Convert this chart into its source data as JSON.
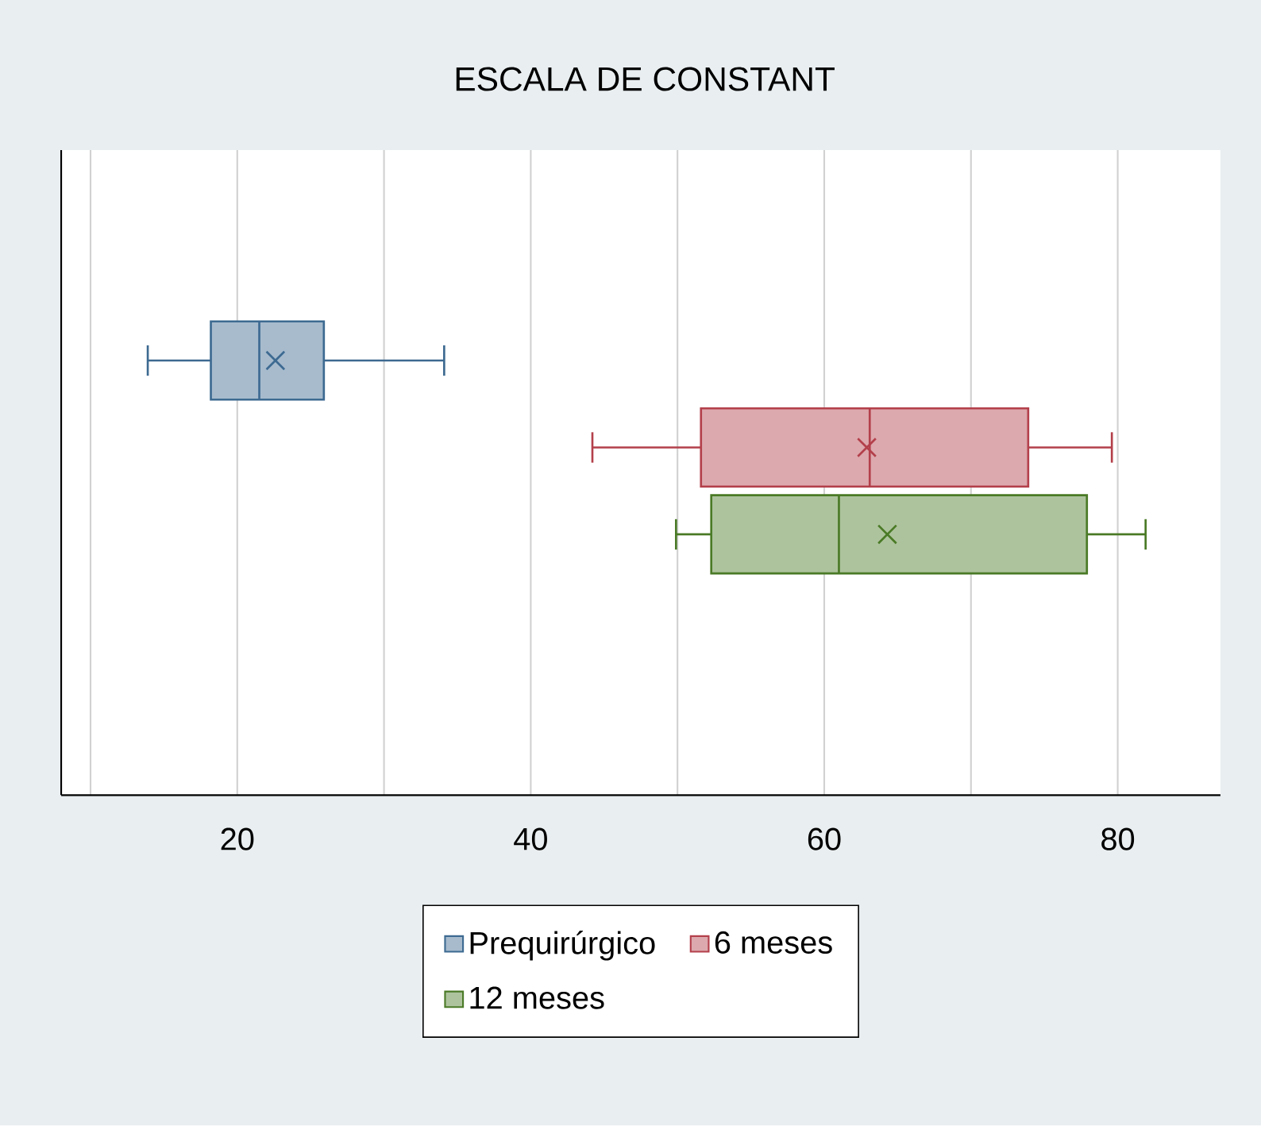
{
  "chart_data": {
    "type": "box",
    "title": "ESCALA DE CONSTANT",
    "orientation": "horizontal",
    "categories": [
      null
    ],
    "series": [
      {
        "name": "Prequirúrgico",
        "color": "#3d6a91",
        "boxes": [
          {
            "low": 13.9,
            "q1": 18.2,
            "median": 21.5,
            "q3": 25.9,
            "high": 34.1,
            "mean": 22.6
          }
        ]
      },
      {
        "name": "6 meses",
        "color": "#b3404b",
        "boxes": [
          {
            "low": 44.2,
            "q1": 51.6,
            "median": 63.1,
            "q3": 73.9,
            "high": 79.6,
            "mean": 62.9
          }
        ]
      },
      {
        "name": "12 meses",
        "color": "#4a7a26",
        "boxes": [
          {
            "low": 49.9,
            "q1": 52.3,
            "median": 61.0,
            "q3": 77.9,
            "high": 81.9,
            "mean": 64.3
          }
        ]
      }
    ],
    "xlim": [
      8,
      87
    ],
    "xticks": [
      {
        "value": 10,
        "label": null
      },
      20,
      {
        "value": 30,
        "label": null
      },
      40,
      {
        "value": 50,
        "label": null
      },
      60,
      {
        "value": 70,
        "label": null
      },
      80
    ],
    "grid": true,
    "legend": "bottom"
  }
}
